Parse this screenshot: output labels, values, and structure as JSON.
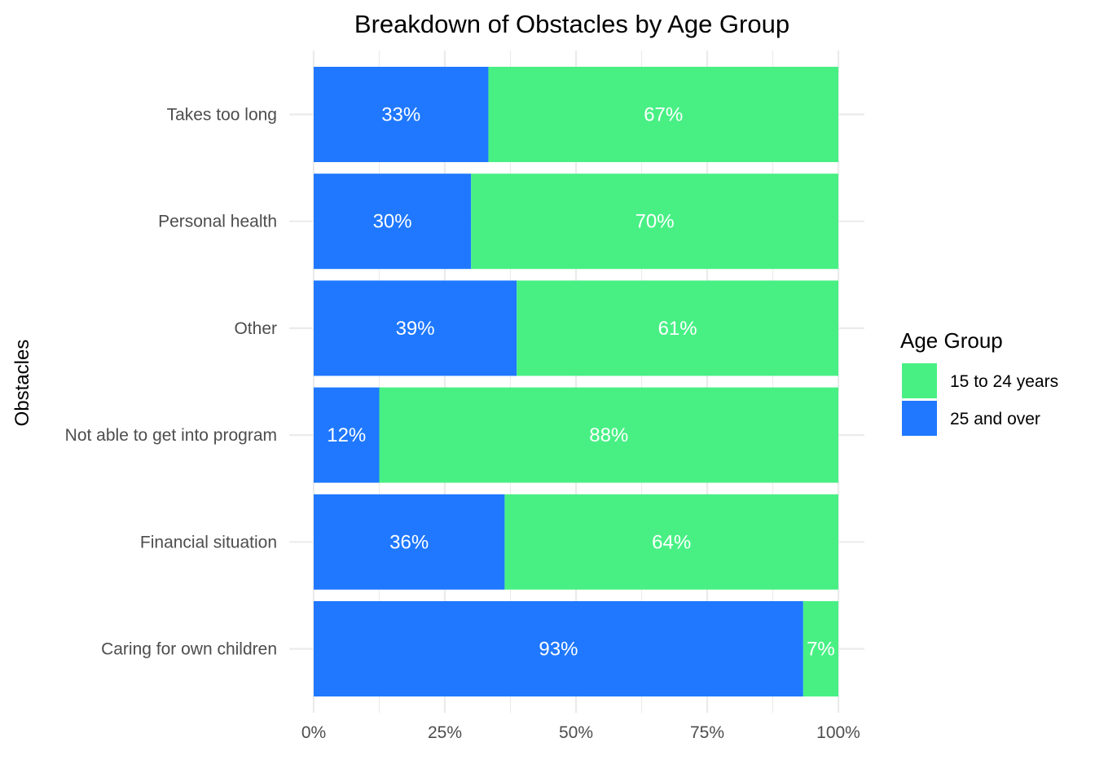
{
  "chart_data": {
    "type": "bar",
    "orientation": "horizontal",
    "stacked": "percent",
    "title": "Breakdown of Obstacles by Age Group",
    "xlabel": "",
    "ylabel": "Obstacles",
    "xlim": [
      0,
      1
    ],
    "x_ticks": [
      "0%",
      "25%",
      "50%",
      "75%",
      "100%"
    ],
    "grid": true,
    "legend_position": "right",
    "legend_title": "Age Group",
    "categories": [
      "Takes too long",
      "Personal health",
      "Other",
      "Not able to get into program",
      "Financial situation",
      "Caring for own children"
    ],
    "series": [
      {
        "name": "25 and over",
        "color": "#1f78ff",
        "values": [
          0.333,
          0.3,
          0.387,
          0.125,
          0.364,
          0.933
        ],
        "labels": [
          "33%",
          "30%",
          "39%",
          "12%",
          "36%",
          "93%"
        ]
      },
      {
        "name": "15 to 24 years",
        "color": "#48f084",
        "values": [
          0.667,
          0.7,
          0.613,
          0.875,
          0.636,
          0.067
        ],
        "labels": [
          "67%",
          "70%",
          "61%",
          "88%",
          "64%",
          "7%"
        ]
      }
    ],
    "legend_order": [
      "15 to 24 years",
      "25 and over"
    ]
  }
}
